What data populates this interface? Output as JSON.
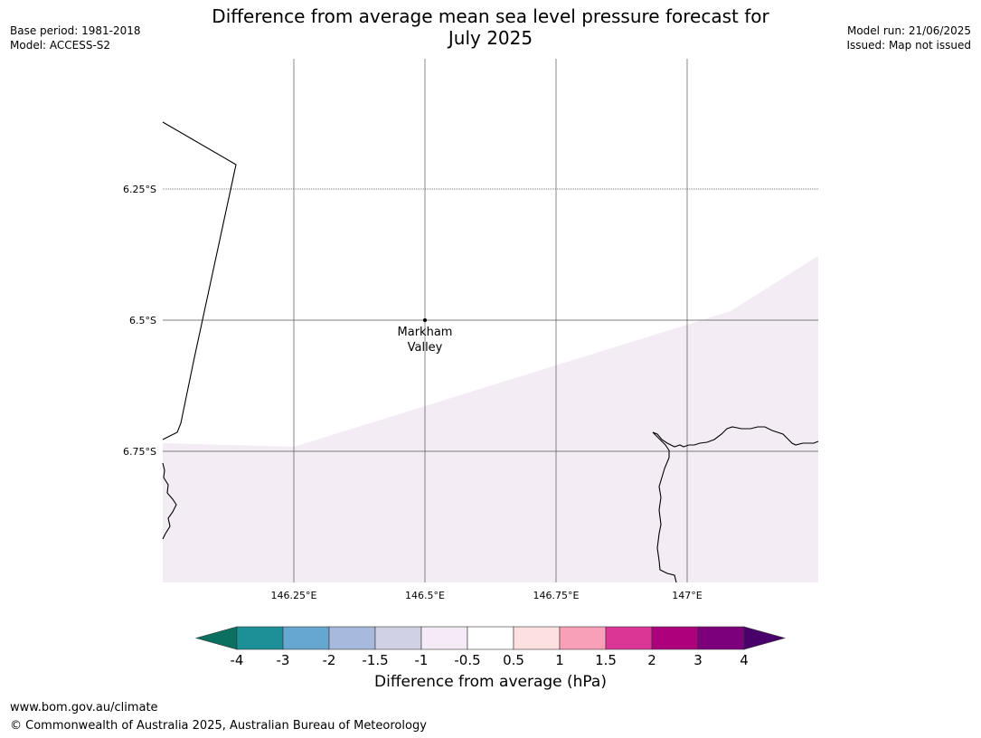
{
  "header": {
    "title_line1": "Difference from average mean sea level pressure forecast for",
    "title_line2": "July 2025",
    "base_period": "Base period: 1981-2018",
    "model": "Model: ACCESS-S2",
    "model_run": "Model run: 21/06/2025",
    "issued": "Issued: Map not issued"
  },
  "map": {
    "lat_labels": [
      "6.25°S",
      "6.5°S",
      "6.75°S"
    ],
    "lon_labels": [
      "146.25°E",
      "146.5°E",
      "146.75°E",
      "147°E"
    ],
    "place": {
      "name_line1": "Markham",
      "name_line2": "Valley",
      "lon": 146.5,
      "lat": -6.5
    },
    "fill_color": "#f3ecf5",
    "fill_class": "-1 to -0.5",
    "extent": {
      "lon_min": 146.0,
      "lon_max": 147.25,
      "lat_min": -7.0,
      "lat_max": -6.0
    }
  },
  "colorbar": {
    "ticks": [
      "-4",
      "-3",
      "-2",
      "-1.5",
      "-1",
      "-0.5",
      "0.5",
      "1",
      "1.5",
      "2",
      "3",
      "4"
    ],
    "colors": [
      "#0b7060",
      "#1b9197",
      "#66a7d0",
      "#a7b9dc",
      "#d1d1e6",
      "#f4ebf6",
      "#ffffff",
      "#fde0e0",
      "#f7a0b8",
      "#db3596",
      "#ac007c",
      "#7c007c",
      "#4a006b"
    ],
    "label": "Difference from average (hPa)"
  },
  "footer": {
    "url": "www.bom.gov.au/climate",
    "copyright": "© Commonwealth of Australia 2025, Australian Bureau of Meteorology"
  }
}
